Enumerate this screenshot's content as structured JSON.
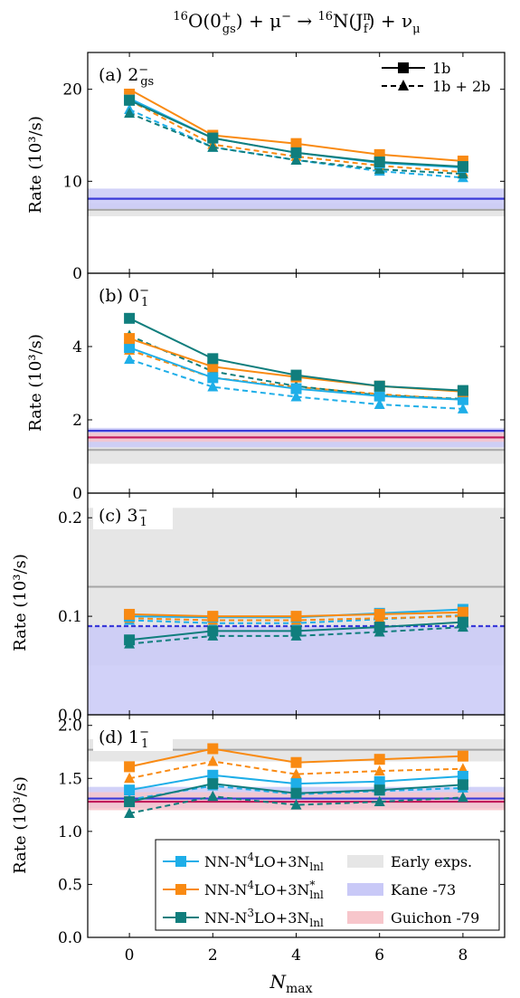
{
  "figure": {
    "title_parts": {
      "a": "16",
      "b": "O(0",
      "c": "+",
      "d": "gs",
      "e": ") + μ",
      "f": "−",
      "g": " → ",
      "h": "16",
      "i": "N(J",
      "j": "π",
      "k": "f",
      "l": ") + ν",
      "m": "μ"
    },
    "xlabel": "N",
    "xlabel_sub": "max",
    "ylabel": "Rate (10³/s)"
  },
  "colors": {
    "n4lo": "#1eaee8",
    "n4lo_star": "#f98a12",
    "n3lo": "#107e7d",
    "early_band": "#e6e6e6",
    "early_line": "#a6a6a6",
    "kane_band": "#c9c9f7",
    "kane_line": "#3b3bd8",
    "guichon_band": "#f7c6cb",
    "guichon_line": "#c2185b"
  },
  "legend": {
    "style_solid": "1b",
    "style_dashed": "1b + 2b",
    "series": [
      {
        "pre": "NN-N",
        "sup1": "4",
        "mid": "LO+3N",
        "sup2": "",
        "sub": "lnl",
        "color": "n4lo"
      },
      {
        "pre": "NN-N",
        "sup1": "4",
        "mid": "LO+3N",
        "sup2": "*",
        "sub": "lnl",
        "color": "n4lo_star"
      },
      {
        "pre": "NN-N",
        "sup1": "3",
        "mid": "LO+3N",
        "sup2": "",
        "sub": "lnl",
        "color": "n3lo"
      }
    ],
    "bands": [
      {
        "label": "Early exps.",
        "color": "early_band"
      },
      {
        "label": "Kane -73",
        "color": "kane_band"
      },
      {
        "label": "Guichon -79",
        "color": "guichon_band"
      }
    ]
  },
  "chart_data": [
    {
      "type": "line",
      "panel_label": {
        "letter": "(a) ",
        "main": "2",
        "sup": "−",
        "sub": "gs"
      },
      "x": [
        0,
        2,
        4,
        6,
        8
      ],
      "xlim": [
        -1,
        9
      ],
      "ylim": [
        0,
        24
      ],
      "yticks": [
        0,
        10,
        20
      ],
      "ytick_labels": [
        "0",
        "10",
        "20"
      ],
      "series": [
        {
          "name": "NN-N4LO+3Nlnl 1b",
          "color": "n4lo",
          "style": "solid",
          "marker": "square",
          "values": [
            19.0,
            14.7,
            13.1,
            12.0,
            11.5
          ]
        },
        {
          "name": "NN-N4LO+3Nlnl* 1b",
          "color": "n4lo_star",
          "style": "solid",
          "marker": "square",
          "values": [
            20.0,
            15.0,
            14.1,
            12.9,
            12.2
          ]
        },
        {
          "name": "NN-N3LO+3Nlnl 1b",
          "color": "n3lo",
          "style": "solid",
          "marker": "square",
          "values": [
            18.8,
            14.7,
            13.1,
            12.1,
            11.6
          ]
        },
        {
          "name": "NN-N4LO+3Nlnl 1b + 2b",
          "color": "n4lo",
          "style": "dashed",
          "marker": "triangle",
          "values": [
            17.8,
            13.7,
            12.3,
            11.1,
            10.4
          ]
        },
        {
          "name": "NN-N4LO+3Nlnl* 1b + 2b",
          "color": "n4lo_star",
          "style": "dashed",
          "marker": "triangle",
          "values": [
            18.8,
            14.0,
            12.7,
            11.7,
            11.0
          ]
        },
        {
          "name": "NN-N3LO+3Nlnl 1b + 2b",
          "color": "n3lo",
          "style": "dashed",
          "marker": "triangle",
          "values": [
            17.4,
            13.7,
            12.3,
            11.3,
            10.8
          ]
        }
      ],
      "bands": [
        {
          "name": "Early exps.",
          "color": "early_band",
          "line": "early_line",
          "low": 6.2,
          "high": 7.6,
          "center": 6.9
        },
        {
          "name": "Kane -73",
          "color": "kane_band",
          "line": "kane_line",
          "low": 7.0,
          "high": 9.2,
          "center": 8.1
        }
      ]
    },
    {
      "type": "line",
      "panel_label": {
        "letter": "(b) ",
        "main": "0",
        "sup": "−",
        "sub": "1"
      },
      "x": [
        0,
        2,
        4,
        6,
        8
      ],
      "xlim": [
        -1,
        9
      ],
      "ylim": [
        0,
        6
      ],
      "yticks": [
        0,
        2,
        4
      ],
      "ytick_labels": [
        "0",
        "2",
        "4"
      ],
      "series": [
        {
          "name": "NN-N4LO+3Nlnl 1b",
          "color": "n4lo",
          "style": "solid",
          "marker": "square",
          "values": [
            3.97,
            3.15,
            2.85,
            2.65,
            2.55
          ]
        },
        {
          "name": "NN-N4LO+3Nlnl* 1b",
          "color": "n4lo_star",
          "style": "solid",
          "marker": "square",
          "values": [
            4.22,
            3.45,
            3.17,
            2.92,
            2.77
          ]
        },
        {
          "name": "NN-N3LO+3Nlnl 1b",
          "color": "n3lo",
          "style": "solid",
          "marker": "square",
          "values": [
            4.77,
            3.67,
            3.22,
            2.92,
            2.8
          ]
        },
        {
          "name": "NN-N4LO+3Nlnl 1b + 2b",
          "color": "n4lo",
          "style": "dashed",
          "marker": "triangle",
          "values": [
            3.65,
            2.9,
            2.63,
            2.42,
            2.3
          ]
        },
        {
          "name": "NN-N4LO+3Nlnl* 1b + 2b",
          "color": "n4lo_star",
          "style": "dashed",
          "marker": "triangle",
          "values": [
            3.9,
            3.15,
            2.9,
            2.7,
            2.55
          ]
        },
        {
          "name": "NN-N3LO+3Nlnl 1b + 2b",
          "color": "n3lo",
          "style": "dashed",
          "marker": "triangle",
          "values": [
            4.3,
            3.32,
            2.92,
            2.67,
            2.57
          ]
        }
      ],
      "bands": [
        {
          "name": "Early exps.",
          "color": "early_band",
          "line": "early_line",
          "low": 0.8,
          "high": 1.55,
          "center": 1.18
        },
        {
          "name": "Kane -73",
          "color": "kane_band",
          "line": "kane_line",
          "low": 1.25,
          "high": 1.78,
          "center": 1.7
        },
        {
          "name": "Guichon -79",
          "color": "guichon_band",
          "line": "guichon_line",
          "low": 1.4,
          "high": 1.65,
          "center": 1.52
        }
      ]
    },
    {
      "type": "line",
      "panel_label": {
        "letter": "(c) ",
        "main": "3",
        "sup": "−",
        "sub": "1"
      },
      "x": [
        0,
        2,
        4,
        6,
        8
      ],
      "xlim": [
        -1,
        9
      ],
      "ylim": [
        0,
        0.225
      ],
      "yticks": [
        0,
        0.1,
        0.2
      ],
      "ytick_labels": [
        "0.0",
        "0.1",
        "0.2"
      ],
      "series": [
        {
          "name": "NN-N4LO+3Nlnl 1b",
          "color": "n4lo",
          "style": "solid",
          "marker": "square",
          "values": [
            0.1,
            0.099,
            0.099,
            0.103,
            0.107
          ]
        },
        {
          "name": "NN-N4LO+3Nlnl* 1b",
          "color": "n4lo_star",
          "style": "solid",
          "marker": "square",
          "values": [
            0.102,
            0.1,
            0.1,
            0.102,
            0.104
          ]
        },
        {
          "name": "NN-N3LO+3Nlnl 1b",
          "color": "n3lo",
          "style": "solid",
          "marker": "square",
          "values": [
            0.076,
            0.085,
            0.085,
            0.089,
            0.094
          ]
        },
        {
          "name": "NN-N4LO+3Nlnl 1b + 2b",
          "color": "n4lo",
          "style": "dashed",
          "marker": "triangle",
          "values": [
            0.096,
            0.093,
            0.093,
            0.097,
            0.101
          ]
        },
        {
          "name": "NN-N4LO+3Nlnl* 1b + 2b",
          "color": "n4lo_star",
          "style": "dashed",
          "marker": "triangle",
          "values": [
            0.098,
            0.096,
            0.096,
            0.098,
            0.1
          ]
        },
        {
          "name": "NN-N3LO+3Nlnl 1b + 2b",
          "color": "n3lo",
          "style": "dashed",
          "marker": "triangle",
          "values": [
            0.072,
            0.08,
            0.08,
            0.084,
            0.089
          ]
        }
      ],
      "bands": [
        {
          "name": "Early exps.",
          "color": "early_band",
          "line": "early_line",
          "low": 0.05,
          "high": 0.21,
          "center": 0.13
        },
        {
          "name": "Kane -73",
          "color": "kane_band",
          "line": "kane_line",
          "low": 0.0,
          "high": 0.09,
          "center": 0.09,
          "center_dashed": true
        }
      ]
    },
    {
      "type": "line",
      "panel_label": {
        "letter": "(d) ",
        "main": "1",
        "sup": "−",
        "sub": "1"
      },
      "x": [
        0,
        2,
        4,
        6,
        8
      ],
      "xlim": [
        -1,
        9
      ],
      "ylim": [
        0,
        2.1
      ],
      "yticks": [
        0,
        0.5,
        1.0,
        1.5,
        2.0
      ],
      "ytick_labels": [
        "0.0",
        "0.5",
        "1.0",
        "1.5",
        "2.0"
      ],
      "series": [
        {
          "name": "NN-N4LO+3Nlnl 1b",
          "color": "n4lo",
          "style": "solid",
          "marker": "square",
          "values": [
            1.39,
            1.53,
            1.45,
            1.47,
            1.52
          ]
        },
        {
          "name": "NN-N4LO+3Nlnl* 1b",
          "color": "n4lo_star",
          "style": "solid",
          "marker": "square",
          "values": [
            1.61,
            1.78,
            1.65,
            1.68,
            1.71
          ]
        },
        {
          "name": "NN-N3LO+3Nlnl 1b",
          "color": "n3lo",
          "style": "solid",
          "marker": "square",
          "values": [
            1.28,
            1.45,
            1.36,
            1.39,
            1.44
          ]
        },
        {
          "name": "NN-N4LO+3Nlnl 1b + 2b",
          "color": "n4lo",
          "style": "dashed",
          "marker": "triangle",
          "values": [
            1.3,
            1.43,
            1.35,
            1.38,
            1.41
          ]
        },
        {
          "name": "NN-N4LO+3Nlnl* 1b + 2b",
          "color": "n4lo_star",
          "style": "dashed",
          "marker": "triangle",
          "values": [
            1.5,
            1.66,
            1.54,
            1.57,
            1.59
          ]
        },
        {
          "name": "NN-N3LO+3Nlnl 1b + 2b",
          "color": "n3lo",
          "style": "dashed",
          "marker": "triangle",
          "values": [
            1.17,
            1.33,
            1.25,
            1.28,
            1.32
          ]
        }
      ],
      "bands": [
        {
          "name": "Early exps.",
          "color": "early_band",
          "line": "early_line",
          "low": 1.66,
          "high": 1.87,
          "center": 1.77
        },
        {
          "name": "Kane -73",
          "color": "kane_band",
          "line": "kane_line",
          "low": 1.22,
          "high": 1.42,
          "center": 1.31
        },
        {
          "name": "Guichon -79",
          "color": "guichon_band",
          "line": "guichon_line",
          "low": 1.2,
          "high": 1.37,
          "center": 1.28
        }
      ]
    }
  ],
  "xaxis": {
    "ticks": [
      0,
      2,
      4,
      6,
      8
    ],
    "tick_labels": [
      "0",
      "2",
      "4",
      "6",
      "8"
    ]
  }
}
